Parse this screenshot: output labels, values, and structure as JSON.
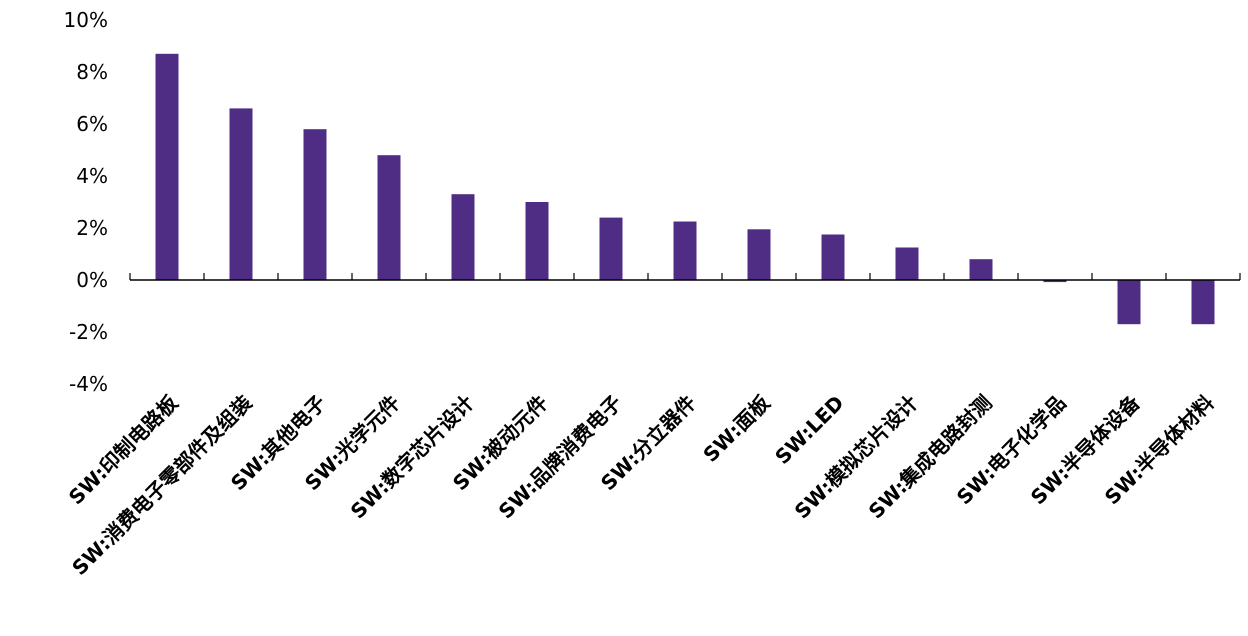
{
  "chart_data": {
    "type": "bar",
    "title": "",
    "xlabel": "",
    "ylabel": "",
    "categories": [
      "SW:印制电路板",
      "SW:消费电子零部件及组装",
      "SW:其他电子",
      "SW:光学元件",
      "SW:数字芯片设计",
      "SW:被动元件",
      "SW:品牌消费电子",
      "SW:分立器件",
      "SW:面板",
      "SW:LED",
      "SW:模拟芯片设计",
      "SW:集成电路封测",
      "SW:电子化学品",
      "SW:半导体设备",
      "SW:半导体材料"
    ],
    "values": [
      8.7,
      6.6,
      5.8,
      4.8,
      3.3,
      3.0,
      2.4,
      2.25,
      1.95,
      1.75,
      1.25,
      0.8,
      -0.08,
      -1.7,
      -1.7
    ],
    "ylim": [
      -4,
      10
    ],
    "yticks": [
      "10%",
      "8%",
      "6%",
      "4%",
      "2%",
      "0%",
      "-2%",
      "-4%"
    ],
    "ytick_values": [
      10,
      8,
      6,
      4,
      2,
      0,
      -2,
      -4
    ],
    "bar_color": "#4f2d85",
    "grid": false,
    "legend": "none"
  }
}
